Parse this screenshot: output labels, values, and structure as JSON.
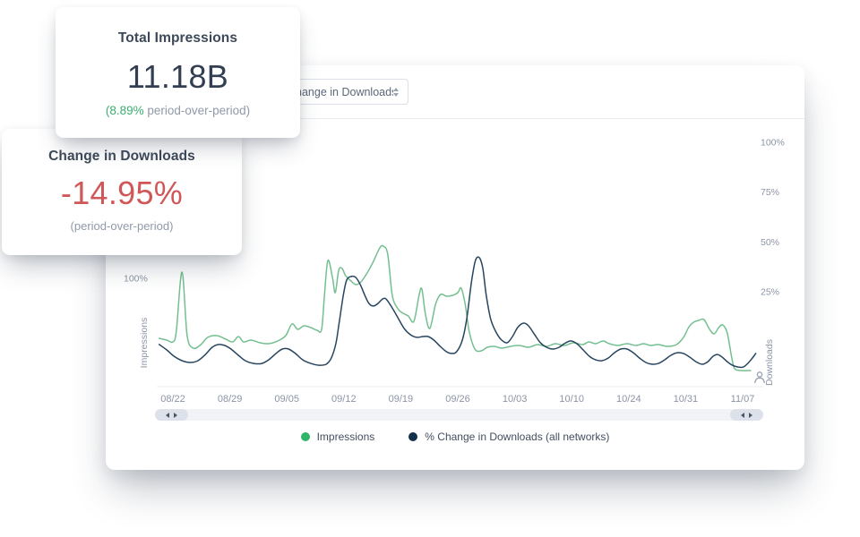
{
  "cards": {
    "impressions": {
      "title": "Total Impressions",
      "value": "11.18B",
      "sub_highlight": "(8.89%",
      "sub_rest": " period-over-period)"
    },
    "downloads": {
      "title": "Change in Downloads",
      "value": "-14.95%",
      "sub": "(period-over-period)"
    }
  },
  "panel": {
    "dropdown": {
      "value": "Change in Downloads"
    }
  },
  "chart_data": {
    "type": "line",
    "title": "",
    "x_tick_labels": [
      "08/22",
      "08/29",
      "09/05",
      "09/12",
      "09/19",
      "09/26",
      "10/03",
      "10/10",
      "10/24",
      "10/31",
      "11/07"
    ],
    "grid": false,
    "legend_position": "bottom",
    "left_axis": {
      "label": "Impressions",
      "ticks": [
        100
      ],
      "unit": "%"
    },
    "right_axis": {
      "label": "Downloads",
      "ticks": [
        100,
        75,
        50,
        25
      ],
      "unit": "%",
      "ylim": [
        -25,
        110
      ]
    },
    "legend": [
      {
        "label": "Impressions",
        "color": "#2fb56b"
      },
      {
        "label": "% Change in Downloads (all networks)",
        "color": "#12304b"
      }
    ],
    "series": [
      {
        "name": "Impressions",
        "axis": "left",
        "color": "#74bf90",
        "points": [
          [
            -0.24,
            35.6
          ],
          [
            -0.11,
            33.7
          ],
          [
            0,
            31.7
          ],
          [
            0.06,
            43.3
          ],
          [
            0.16,
            106.7
          ],
          [
            0.25,
            38.5
          ],
          [
            0.36,
            25
          ],
          [
            0.49,
            28.8
          ],
          [
            0.61,
            36.5
          ],
          [
            0.77,
            38.5
          ],
          [
            0.93,
            34.6
          ],
          [
            1.05,
            31.7
          ],
          [
            1.15,
            37.5
          ],
          [
            1.24,
            31.7
          ],
          [
            1.37,
            33.7
          ],
          [
            1.53,
            30.8
          ],
          [
            1.68,
            29.8
          ],
          [
            1.84,
            32.7
          ],
          [
            1.98,
            38.5
          ],
          [
            2.09,
            51
          ],
          [
            2.19,
            45.2
          ],
          [
            2.3,
            49
          ],
          [
            2.42,
            47.1
          ],
          [
            2.53,
            44.2
          ],
          [
            2.61,
            45.2
          ],
          [
            2.66,
            81.7
          ],
          [
            2.72,
            119.2
          ],
          [
            2.8,
            101
          ],
          [
            2.85,
            84.6
          ],
          [
            2.91,
            108.7
          ],
          [
            2.97,
            110.6
          ],
          [
            3.03,
            102.9
          ],
          [
            3.11,
            98.1
          ],
          [
            3.21,
            93.3
          ],
          [
            3.3,
            96.2
          ],
          [
            3.41,
            105.8
          ],
          [
            3.52,
            118.3
          ],
          [
            3.63,
            132.7
          ],
          [
            3.69,
            134.6
          ],
          [
            3.77,
            126
          ],
          [
            3.85,
            81.7
          ],
          [
            3.95,
            67.3
          ],
          [
            4.04,
            62.5
          ],
          [
            4.13,
            59.6
          ],
          [
            4.23,
            53.8
          ],
          [
            4.32,
            81.7
          ],
          [
            4.37,
            88.5
          ],
          [
            4.43,
            62.5
          ],
          [
            4.51,
            46.2
          ],
          [
            4.61,
            72.1
          ],
          [
            4.7,
            82.7
          ],
          [
            4.8,
            80.8
          ],
          [
            4.91,
            81.7
          ],
          [
            5,
            84.6
          ],
          [
            5.06,
            89.4
          ],
          [
            5.13,
            72.1
          ],
          [
            5.2,
            43.3
          ],
          [
            5.3,
            24
          ],
          [
            5.41,
            22.1
          ],
          [
            5.52,
            26
          ],
          [
            5.64,
            26.9
          ],
          [
            5.77,
            25
          ],
          [
            5.93,
            26.9
          ],
          [
            6.08,
            27.9
          ],
          [
            6.24,
            26
          ],
          [
            6.4,
            28.8
          ],
          [
            6.56,
            26.9
          ],
          [
            6.71,
            29.8
          ],
          [
            6.87,
            27.9
          ],
          [
            7.03,
            30.8
          ],
          [
            7.19,
            28.8
          ],
          [
            7.3,
            31.7
          ],
          [
            7.42,
            29.8
          ],
          [
            7.55,
            32.7
          ],
          [
            7.66,
            29.8
          ],
          [
            7.81,
            27.9
          ],
          [
            7.97,
            29.8
          ],
          [
            8.13,
            27.9
          ],
          [
            8.26,
            29.8
          ],
          [
            8.38,
            27.9
          ],
          [
            8.52,
            28.8
          ],
          [
            8.68,
            26.9
          ],
          [
            8.84,
            28.8
          ],
          [
            8.96,
            36.5
          ],
          [
            9.06,
            48.1
          ],
          [
            9.14,
            52.9
          ],
          [
            9.23,
            54.8
          ],
          [
            9.32,
            55.8
          ],
          [
            9.42,
            45.2
          ],
          [
            9.5,
            40.4
          ],
          [
            9.58,
            47.1
          ],
          [
            9.65,
            50
          ],
          [
            9.73,
            41.3
          ],
          [
            9.81,
            14.4
          ],
          [
            9.86,
            2.9
          ],
          [
            9.98,
            1
          ],
          [
            10.14,
            1
          ]
        ]
      },
      {
        "name": "% Change in Downloads (all networks)",
        "axis": "right",
        "color": "#27455f",
        "points": [
          [
            -0.24,
            -1.4
          ],
          [
            -0.11,
            -4.1
          ],
          [
            0.02,
            -7.3
          ],
          [
            0.16,
            -9.5
          ],
          [
            0.3,
            -10.4
          ],
          [
            0.44,
            -9.5
          ],
          [
            0.57,
            -6.4
          ],
          [
            0.69,
            -2.8
          ],
          [
            0.8,
            -1.4
          ],
          [
            0.91,
            -1.9
          ],
          [
            1.02,
            -3.7
          ],
          [
            1.15,
            -6.8
          ],
          [
            1.27,
            -9.5
          ],
          [
            1.42,
            -10.9
          ],
          [
            1.56,
            -10.9
          ],
          [
            1.68,
            -9.1
          ],
          [
            1.81,
            -5.9
          ],
          [
            1.92,
            -3.7
          ],
          [
            2.03,
            -3.7
          ],
          [
            2.15,
            -5.9
          ],
          [
            2.28,
            -9.1
          ],
          [
            2.42,
            -10.9
          ],
          [
            2.56,
            -11.8
          ],
          [
            2.69,
            -11.3
          ],
          [
            2.78,
            -8.2
          ],
          [
            2.86,
            -1
          ],
          [
            2.92,
            9.8
          ],
          [
            2.99,
            23.2
          ],
          [
            3.05,
            30.9
          ],
          [
            3.13,
            32.7
          ],
          [
            3.21,
            32.2
          ],
          [
            3.29,
            28.6
          ],
          [
            3.37,
            23.2
          ],
          [
            3.44,
            19.2
          ],
          [
            3.52,
            17.9
          ],
          [
            3.6,
            19.2
          ],
          [
            3.68,
            21.4
          ],
          [
            3.74,
            21.4
          ],
          [
            3.84,
            17.4
          ],
          [
            3.95,
            12
          ],
          [
            4.06,
            6.6
          ],
          [
            4.17,
            3.5
          ],
          [
            4.28,
            2.2
          ],
          [
            4.39,
            2.6
          ],
          [
            4.48,
            2.6
          ],
          [
            4.58,
            0.8
          ],
          [
            4.69,
            -2.3
          ],
          [
            4.8,
            -5
          ],
          [
            4.89,
            -5.9
          ],
          [
            4.98,
            -5
          ],
          [
            5.08,
            0.8
          ],
          [
            5.16,
            12
          ],
          [
            5.24,
            30
          ],
          [
            5.31,
            40.7
          ],
          [
            5.38,
            42.1
          ],
          [
            5.44,
            36.7
          ],
          [
            5.5,
            23.2
          ],
          [
            5.58,
            11.1
          ],
          [
            5.68,
            4.4
          ],
          [
            5.77,
            0.8
          ],
          [
            5.87,
            -0.5
          ],
          [
            5.96,
            2.6
          ],
          [
            6.05,
            7.1
          ],
          [
            6.15,
            9.3
          ],
          [
            6.24,
            8
          ],
          [
            6.35,
            3.5
          ],
          [
            6.45,
            -0.5
          ],
          [
            6.56,
            -2.8
          ],
          [
            6.67,
            -3.7
          ],
          [
            6.78,
            -2.8
          ],
          [
            6.87,
            -1
          ],
          [
            6.98,
            0.4
          ],
          [
            7.09,
            -1
          ],
          [
            7.2,
            -4.1
          ],
          [
            7.31,
            -7.3
          ],
          [
            7.42,
            -9.1
          ],
          [
            7.53,
            -9.5
          ],
          [
            7.64,
            -8.2
          ],
          [
            7.75,
            -5.5
          ],
          [
            7.86,
            -3.7
          ],
          [
            7.97,
            -3.7
          ],
          [
            8.08,
            -5.5
          ],
          [
            8.19,
            -8.2
          ],
          [
            8.3,
            -10.4
          ],
          [
            8.41,
            -11.3
          ],
          [
            8.52,
            -10.9
          ],
          [
            8.63,
            -9.1
          ],
          [
            8.74,
            -6.8
          ],
          [
            8.85,
            -5.5
          ],
          [
            8.96,
            -5.9
          ],
          [
            9.07,
            -7.7
          ],
          [
            9.18,
            -10
          ],
          [
            9.29,
            -11.3
          ],
          [
            9.39,
            -10
          ],
          [
            9.48,
            -7.3
          ],
          [
            9.56,
            -6.4
          ],
          [
            9.64,
            -7.7
          ],
          [
            9.73,
            -10
          ],
          [
            9.82,
            -11.8
          ],
          [
            9.92,
            -12.7
          ],
          [
            10.01,
            -12.7
          ],
          [
            10.09,
            -10.9
          ],
          [
            10.17,
            -8.2
          ],
          [
            10.23,
            -5.9
          ]
        ]
      }
    ]
  }
}
